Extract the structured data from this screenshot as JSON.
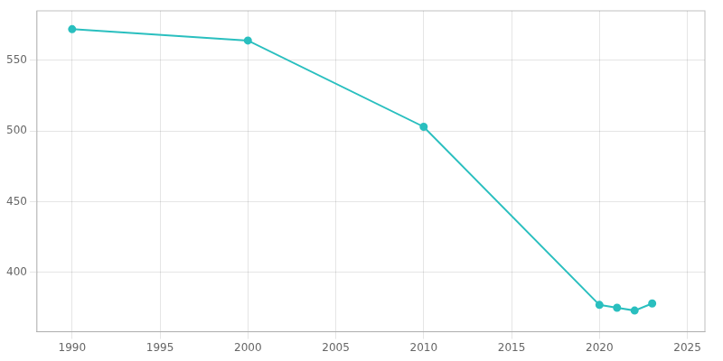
{
  "chart_data": {
    "type": "line",
    "x": [
      1990,
      2000,
      2010,
      2020,
      2021,
      2022,
      2023
    ],
    "values": [
      572,
      564,
      503,
      377,
      375,
      373,
      378
    ],
    "color": "#2ABFBF",
    "xlim": [
      1988,
      2026
    ],
    "ylim": [
      358,
      585
    ],
    "xticks": [
      1990,
      1995,
      2000,
      2005,
      2010,
      2015,
      2020,
      2025
    ],
    "yticks": [
      400,
      450,
      500,
      550
    ],
    "grid": true
  }
}
